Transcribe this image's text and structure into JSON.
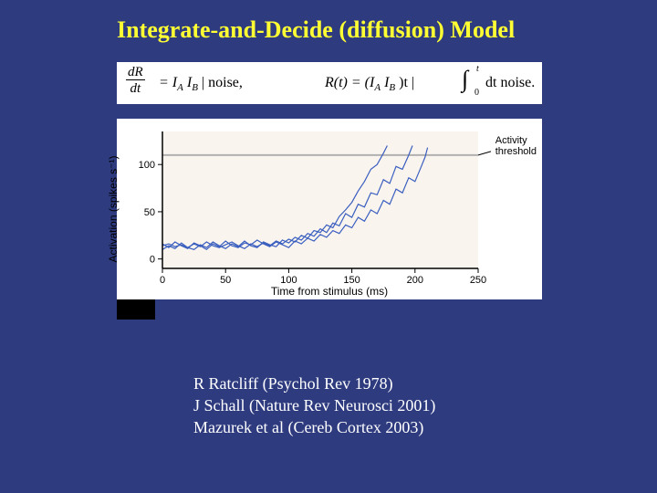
{
  "title": "Integrate-and-Decide (diffusion) Model",
  "equation": {
    "frac_num": "dR",
    "frac_den": "dt",
    "part1": "= I",
    "subA1": "A",
    "part2": "    I",
    "subB1": "B",
    "part3": "  |  noise,",
    "part4": "R(t) = (I",
    "subA2": "A",
    "part5": "   I",
    "subB2": "B",
    "part6": ")t  |",
    "int_lower": "0",
    "int_upper": "t",
    "part7": "dt  noise.",
    "text_color": "#000000",
    "bg": "#ffffff",
    "fontsize": 16
  },
  "refs": {
    "r1": "R Ratcliff (Psychol Rev 1978)",
    "r2": "J Schall (Nature Rev Neurosci 2001)",
    "r3": "Mazurek et al (Cereb Cortex 2003)"
  },
  "chart": {
    "type": "line",
    "background_color": "#ffffff",
    "plot_area_color": "#faf4ef",
    "xlabel": "Time from stimulus (ms)",
    "ylabel": "Activation (spikes s⁻¹)",
    "label_fontsize": 12,
    "tick_fontsize": 11,
    "xlim": [
      0,
      250
    ],
    "ylim": [
      -10,
      135
    ],
    "xticks": [
      0,
      50,
      100,
      150,
      200,
      250
    ],
    "yticks": [
      0,
      50,
      100
    ],
    "threshold": {
      "value": 110,
      "label": "Activity\nthreshold",
      "color": "#b0b0b0",
      "width": 2
    },
    "axis_color": "#000000",
    "line_color": "#3a5fbf",
    "line_width": 1.2,
    "series": [
      {
        "points": [
          [
            0,
            14
          ],
          [
            5,
            16
          ],
          [
            10,
            13
          ],
          [
            15,
            15
          ],
          [
            20,
            12
          ],
          [
            25,
            16
          ],
          [
            30,
            13
          ],
          [
            35,
            18
          ],
          [
            40,
            14
          ],
          [
            45,
            12
          ],
          [
            50,
            15
          ],
          [
            55,
            18
          ],
          [
            60,
            14
          ],
          [
            65,
            11
          ],
          [
            70,
            16
          ],
          [
            75,
            13
          ],
          [
            80,
            17
          ],
          [
            85,
            14
          ],
          [
            90,
            19
          ],
          [
            95,
            16
          ],
          [
            100,
            21
          ],
          [
            105,
            18
          ],
          [
            110,
            25
          ],
          [
            115,
            22
          ],
          [
            120,
            30
          ],
          [
            125,
            28
          ],
          [
            130,
            36
          ],
          [
            135,
            33
          ],
          [
            140,
            45
          ],
          [
            145,
            52
          ],
          [
            150,
            60
          ],
          [
            155,
            72
          ],
          [
            160,
            82
          ],
          [
            165,
            95
          ],
          [
            170,
            100
          ],
          [
            175,
            112
          ],
          [
            178,
            120
          ]
        ]
      },
      {
        "points": [
          [
            0,
            10
          ],
          [
            5,
            14
          ],
          [
            10,
            11
          ],
          [
            15,
            17
          ],
          [
            20,
            12
          ],
          [
            25,
            10
          ],
          [
            30,
            15
          ],
          [
            35,
            12
          ],
          [
            40,
            18
          ],
          [
            45,
            14
          ],
          [
            50,
            11
          ],
          [
            55,
            16
          ],
          [
            60,
            13
          ],
          [
            65,
            19
          ],
          [
            70,
            14
          ],
          [
            75,
            12
          ],
          [
            80,
            18
          ],
          [
            85,
            15
          ],
          [
            90,
            13
          ],
          [
            95,
            20
          ],
          [
            100,
            17
          ],
          [
            105,
            23
          ],
          [
            110,
            20
          ],
          [
            115,
            27
          ],
          [
            120,
            24
          ],
          [
            125,
            32
          ],
          [
            130,
            28
          ],
          [
            135,
            38
          ],
          [
            140,
            35
          ],
          [
            145,
            48
          ],
          [
            150,
            44
          ],
          [
            155,
            58
          ],
          [
            160,
            55
          ],
          [
            165,
            70
          ],
          [
            170,
            68
          ],
          [
            175,
            84
          ],
          [
            180,
            80
          ],
          [
            185,
            98
          ],
          [
            190,
            95
          ],
          [
            195,
            110
          ],
          [
            198,
            120
          ]
        ]
      },
      {
        "points": [
          [
            0,
            16
          ],
          [
            5,
            12
          ],
          [
            10,
            18
          ],
          [
            15,
            14
          ],
          [
            20,
            11
          ],
          [
            25,
            17
          ],
          [
            30,
            14
          ],
          [
            35,
            10
          ],
          [
            40,
            16
          ],
          [
            45,
            13
          ],
          [
            50,
            19
          ],
          [
            55,
            14
          ],
          [
            60,
            12
          ],
          [
            65,
            17
          ],
          [
            70,
            15
          ],
          [
            75,
            20
          ],
          [
            80,
            16
          ],
          [
            85,
            13
          ],
          [
            90,
            18
          ],
          [
            95,
            15
          ],
          [
            100,
            12
          ],
          [
            105,
            19
          ],
          [
            110,
            16
          ],
          [
            115,
            22
          ],
          [
            120,
            19
          ],
          [
            125,
            26
          ],
          [
            130,
            23
          ],
          [
            135,
            30
          ],
          [
            140,
            27
          ],
          [
            145,
            36
          ],
          [
            150,
            33
          ],
          [
            155,
            44
          ],
          [
            160,
            40
          ],
          [
            165,
            52
          ],
          [
            170,
            48
          ],
          [
            175,
            62
          ],
          [
            180,
            58
          ],
          [
            185,
            74
          ],
          [
            190,
            70
          ],
          [
            195,
            86
          ],
          [
            200,
            82
          ],
          [
            205,
            98
          ],
          [
            208,
            108
          ],
          [
            210,
            118
          ]
        ]
      }
    ]
  },
  "colors": {
    "page_bg": "#2e3b7f",
    "title": "#ffff33",
    "refs": "#ffffff"
  }
}
